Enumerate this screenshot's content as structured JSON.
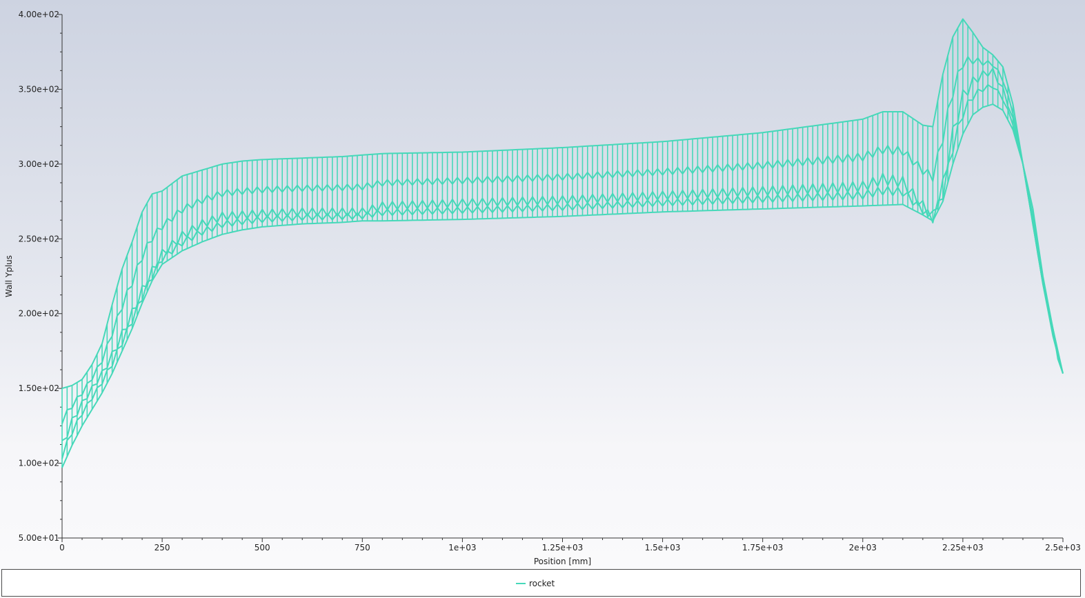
{
  "chart_data": {
    "type": "line",
    "title": "",
    "xlabel": "Position [mm]",
    "ylabel": "Wall Yplus",
    "xlim": [
      0,
      2500
    ],
    "ylim": [
      50,
      400
    ],
    "x_ticks": [
      {
        "value": 0,
        "label": "0"
      },
      {
        "value": 250,
        "label": "250"
      },
      {
        "value": 500,
        "label": "500"
      },
      {
        "value": 750,
        "label": "750"
      },
      {
        "value": 1000,
        "label": "1e+03"
      },
      {
        "value": 1250,
        "label": "1.25e+03"
      },
      {
        "value": 1500,
        "label": "1.5e+03"
      },
      {
        "value": 1750,
        "label": "1.75e+03"
      },
      {
        "value": 2000,
        "label": "2e+03"
      },
      {
        "value": 2250,
        "label": "2.25e+03"
      },
      {
        "value": 2500,
        "label": "2.5e+03"
      }
    ],
    "y_ticks": [
      {
        "value": 50,
        "label": "5.00e+01"
      },
      {
        "value": 100,
        "label": "1.00e+02"
      },
      {
        "value": 150,
        "label": "1.50e+02"
      },
      {
        "value": 200,
        "label": "2.00e+02"
      },
      {
        "value": 250,
        "label": "2.50e+02"
      },
      {
        "value": 300,
        "label": "3.00e+02"
      },
      {
        "value": 350,
        "label": "3.50e+02"
      },
      {
        "value": 400,
        "label": "4.00e+02"
      }
    ],
    "grid": false,
    "legend_position": "bottom-center",
    "series": [
      {
        "name": "rocket",
        "color": "#46d8b9",
        "envelopes": {
          "lower": [
            [
              0,
              97
            ],
            [
              25,
              112
            ],
            [
              50,
              125
            ],
            [
              75,
              136
            ],
            [
              100,
              147
            ],
            [
              125,
              160
            ],
            [
              150,
              175
            ],
            [
              175,
              190
            ],
            [
              200,
              207
            ],
            [
              225,
              222
            ],
            [
              250,
              233
            ],
            [
              300,
              242
            ],
            [
              350,
              248
            ],
            [
              400,
              253
            ],
            [
              450,
              256
            ],
            [
              500,
              258
            ],
            [
              600,
              260
            ],
            [
              700,
              261
            ],
            [
              750,
              262
            ],
            [
              800,
              262
            ],
            [
              1000,
              263
            ],
            [
              1250,
              265
            ],
            [
              1500,
              268
            ],
            [
              1750,
              270
            ],
            [
              2000,
              272
            ],
            [
              2100,
              273
            ],
            [
              2150,
              266
            ],
            [
              2175,
              262
            ],
            [
              2200,
              275
            ],
            [
              2225,
              300
            ],
            [
              2250,
              320
            ],
            [
              2275,
              333
            ],
            [
              2300,
              338
            ],
            [
              2325,
              340
            ],
            [
              2350,
              336
            ],
            [
              2375,
              323
            ],
            [
              2400,
              300
            ],
            [
              2425,
              270
            ],
            [
              2450,
              225
            ],
            [
              2475,
              190
            ],
            [
              2487,
              170
            ],
            [
              2500,
              160
            ]
          ],
          "mid": [
            [
              0,
              112
            ],
            [
              25,
              128
            ],
            [
              50,
              140
            ],
            [
              75,
              150
            ],
            [
              100,
              160
            ],
            [
              125,
              172
            ],
            [
              150,
              186
            ],
            [
              175,
              200
            ],
            [
              200,
              215
            ],
            [
              225,
              228
            ],
            [
              250,
              240
            ],
            [
              300,
              252
            ],
            [
              350,
              260
            ],
            [
              400,
              265
            ],
            [
              450,
              266
            ],
            [
              500,
              267
            ],
            [
              600,
              268
            ],
            [
              700,
              268
            ],
            [
              750,
              268
            ],
            [
              800,
              272
            ],
            [
              1000,
              274
            ],
            [
              1250,
              276
            ],
            [
              1500,
              279
            ],
            [
              1750,
              282
            ],
            [
              2000,
              285
            ],
            [
              2050,
              290
            ],
            [
              2100,
              288
            ],
            [
              2150,
              272
            ],
            [
              2175,
              265
            ],
            [
              2200,
              285
            ],
            [
              2225,
              320
            ],
            [
              2250,
              345
            ],
            [
              2275,
              355
            ],
            [
              2300,
              360
            ],
            [
              2325,
              362
            ],
            [
              2350,
              350
            ],
            [
              2375,
              330
            ],
            [
              2400,
              300
            ],
            [
              2425,
              260
            ],
            [
              2450,
              220
            ],
            [
              2475,
              185
            ],
            [
              2500,
              160
            ]
          ],
          "upper": [
            [
              0,
              150
            ],
            [
              25,
              152
            ],
            [
              50,
              156
            ],
            [
              75,
              166
            ],
            [
              100,
              180
            ],
            [
              125,
              206
            ],
            [
              150,
              230
            ],
            [
              175,
              248
            ],
            [
              200,
              268
            ],
            [
              225,
              280
            ],
            [
              250,
              282
            ],
            [
              300,
              292
            ],
            [
              350,
              296
            ],
            [
              400,
              300
            ],
            [
              450,
              302
            ],
            [
              500,
              303
            ],
            [
              600,
              304
            ],
            [
              700,
              305
            ],
            [
              750,
              306
            ],
            [
              800,
              307
            ],
            [
              1000,
              308
            ],
            [
              1250,
              311
            ],
            [
              1500,
              315
            ],
            [
              1750,
              321
            ],
            [
              2000,
              330
            ],
            [
              2050,
              335
            ],
            [
              2100,
              335
            ],
            [
              2150,
              326
            ],
            [
              2175,
              325
            ],
            [
              2200,
              360
            ],
            [
              2225,
              385
            ],
            [
              2250,
              397
            ],
            [
              2275,
              388
            ],
            [
              2300,
              378
            ],
            [
              2325,
              373
            ],
            [
              2350,
              365
            ],
            [
              2375,
              340
            ],
            [
              2400,
              300
            ],
            [
              2425,
              260
            ],
            [
              2450,
              220
            ],
            [
              2475,
              190
            ],
            [
              2500,
              160
            ]
          ]
        },
        "nodal_column_spacing": 25
      }
    ]
  },
  "legend": {
    "items": [
      {
        "label": "rocket",
        "color": "#46d8b9"
      }
    ]
  }
}
